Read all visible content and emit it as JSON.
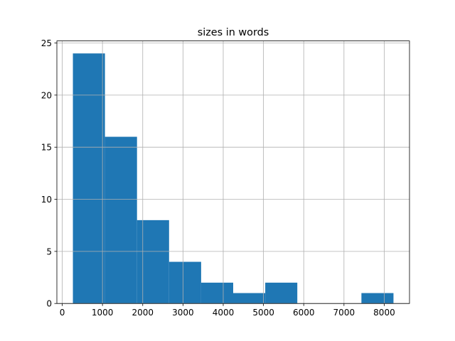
{
  "chart_data": {
    "type": "histogram",
    "title": "sizes in words",
    "bins": [
      265,
      1061.5,
      1858,
      2654.5,
      3451,
      4247.5,
      5044,
      5840.5,
      6637,
      7433.5,
      8230
    ],
    "values": [
      24,
      16,
      8,
      4,
      2,
      1,
      2,
      0,
      0,
      1
    ],
    "color": "#1f77b4",
    "xlim": [
      -133,
      8628
    ],
    "xticks": [
      0,
      1000,
      2000,
      3000,
      4000,
      5000,
      6000,
      7000,
      8000
    ],
    "ylim": [
      0,
      25.2
    ],
    "yticks": [
      0,
      5,
      10,
      15,
      20,
      25
    ],
    "grid": true
  }
}
